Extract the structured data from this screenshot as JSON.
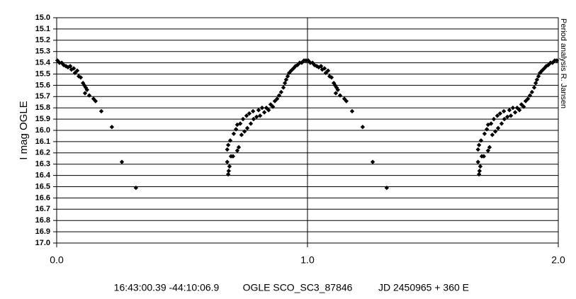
{
  "chart_data": {
    "type": "scatter",
    "y_label": "I mag OGLE",
    "note": "Period analysis R. Jansen",
    "annotations": [
      "16:43:00.39 -44:10:06.9",
      "OGLE SCO_SC3_87846",
      "JD 2450965 + 360 E"
    ],
    "color": "#000000",
    "grid": true,
    "xlim": [
      0,
      2
    ],
    "ylim": [
      17,
      15
    ],
    "xticks": [
      {
        "value": 0,
        "label": "0.0"
      },
      {
        "value": 1,
        "label": "1.0"
      },
      {
        "value": 2,
        "label": "2.0"
      }
    ],
    "yticks": [
      {
        "value": 15,
        "label": "15.0"
      },
      15.1,
      15.2,
      15.3,
      15.4,
      15.5,
      15.6,
      15.7,
      15.8,
      15.9,
      {
        "value": 16,
        "label": "16.0"
      },
      16.1,
      16.2,
      16.3,
      16.4,
      16.5,
      16.6,
      16.7,
      16.8,
      16.9,
      {
        "value": 17,
        "label": "17.0"
      }
    ],
    "x": [
      0.003,
      0.011,
      0.02,
      0.028,
      0.037,
      0.045,
      0.054,
      0.059,
      0.068,
      0.073,
      0.082,
      0.088,
      0.096,
      0.105,
      0.11,
      0.116,
      0.121,
      0.113,
      0.13,
      0.147,
      0.155,
      0.178,
      0.22,
      0.26,
      0.316,
      0.684,
      0.686,
      0.689,
      0.68,
      0.68,
      0.684,
      0.692,
      0.695,
      0.703,
      0.706,
      0.715,
      0.72,
      0.726,
      0.72,
      0.732,
      0.737,
      0.743,
      0.749,
      0.757,
      0.76,
      0.768,
      0.774,
      0.783,
      0.785,
      0.797,
      0.805,
      0.811,
      0.819,
      0.828,
      0.836,
      0.845,
      0.853,
      0.862,
      0.87,
      0.879,
      0.887,
      0.895,
      0.904,
      0.91,
      0.915,
      0.921,
      0.927,
      0.935,
      0.944,
      0.952,
      0.96,
      0.969,
      0.977,
      0.986,
      0.994,
      1.003,
      1.011,
      1.02,
      1.028,
      1.037,
      1.045,
      1.054,
      1.059,
      1.068,
      1.073,
      1.082,
      1.088,
      1.096,
      1.105,
      1.11,
      1.116,
      1.121,
      1.113,
      1.13,
      1.147,
      1.155,
      1.178,
      1.22,
      1.26,
      1.316,
      1.684,
      1.686,
      1.689,
      1.68,
      1.68,
      1.684,
      1.692,
      1.695,
      1.703,
      1.706,
      1.715,
      1.72,
      1.726,
      1.72,
      1.732,
      1.737,
      1.743,
      1.749,
      1.757,
      1.76,
      1.768,
      1.774,
      1.783,
      1.785,
      1.797,
      1.805,
      1.811,
      1.819,
      1.828,
      1.836,
      1.845,
      1.853,
      1.862,
      1.87,
      1.879,
      1.887,
      1.895,
      1.904,
      1.91,
      1.915,
      1.921,
      1.927,
      1.935,
      1.944,
      1.952,
      1.96,
      1.969,
      1.977,
      1.986,
      1.994
    ],
    "values": [
      15.38,
      15.4,
      15.4,
      15.42,
      15.43,
      15.44,
      15.43,
      15.46,
      15.45,
      15.49,
      15.47,
      15.52,
      15.53,
      15.58,
      15.6,
      15.62,
      15.64,
      15.67,
      15.69,
      15.72,
      15.74,
      15.83,
      15.97,
      16.28,
      16.51,
      16.39,
      16.36,
      16.32,
      16.28,
      16.17,
      16.13,
      16.09,
      16.23,
      16.23,
      16.03,
      15.99,
      16.18,
      16.15,
      15.95,
      15.94,
      16.04,
      15.9,
      16.01,
      15.87,
      15.98,
      15.85,
      15.94,
      15.83,
      15.9,
      15.88,
      15.82,
      15.87,
      15.8,
      15.84,
      15.8,
      15.82,
      15.77,
      15.79,
      15.74,
      15.72,
      15.69,
      15.66,
      15.62,
      15.58,
      15.55,
      15.52,
      15.49,
      15.47,
      15.45,
      15.43,
      15.42,
      15.4,
      15.4,
      15.38,
      15.38,
      15.38,
      15.4,
      15.4,
      15.42,
      15.43,
      15.44,
      15.43,
      15.46,
      15.45,
      15.49,
      15.47,
      15.52,
      15.53,
      15.58,
      15.6,
      15.62,
      15.64,
      15.67,
      15.69,
      15.72,
      15.74,
      15.83,
      15.97,
      16.28,
      16.51,
      16.39,
      16.36,
      16.32,
      16.28,
      16.17,
      16.13,
      16.09,
      16.23,
      16.23,
      16.03,
      15.99,
      16.18,
      16.15,
      15.95,
      15.94,
      16.04,
      15.9,
      16.01,
      15.87,
      15.98,
      15.85,
      15.94,
      15.83,
      15.9,
      15.88,
      15.82,
      15.87,
      15.8,
      15.84,
      15.8,
      15.82,
      15.77,
      15.79,
      15.74,
      15.72,
      15.69,
      15.66,
      15.62,
      15.58,
      15.55,
      15.52,
      15.49,
      15.47,
      15.45,
      15.43,
      15.42,
      15.4,
      15.4,
      15.38,
      15.38
    ]
  }
}
